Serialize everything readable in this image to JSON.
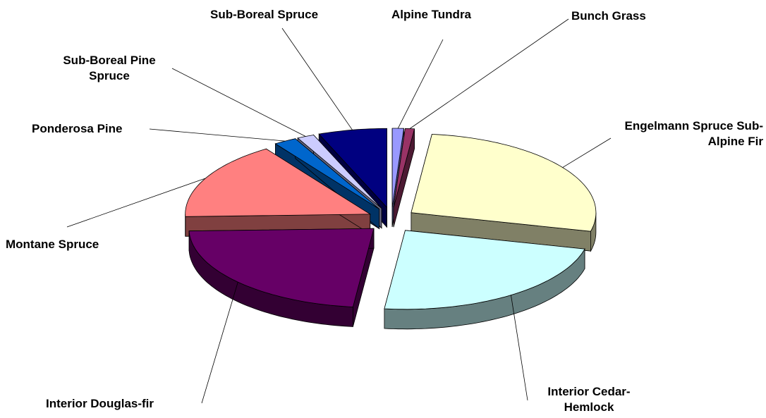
{
  "chart_data": {
    "type": "pie",
    "categories": [
      "Alpine Tundra",
      "Bunch Grass",
      "Engelmann Spruce Sub-Alpine Fir",
      "Interior Cedar-Hemlock",
      "Interior Douglas-fir",
      "Montane Spruce",
      "Ponderosa Pine",
      "Sub-Boreal Pine Spruce",
      "Sub-Boreal Spruce"
    ],
    "values": [
      1,
      0.8,
      27,
      23,
      22.7,
      16,
      2,
      1.5,
      6
    ],
    "colors": [
      "#9999ff",
      "#993366",
      "#ffffcc",
      "#ccffff",
      "#660066",
      "#ff8080",
      "#0066cc",
      "#ccccff",
      "#000080"
    ]
  }
}
